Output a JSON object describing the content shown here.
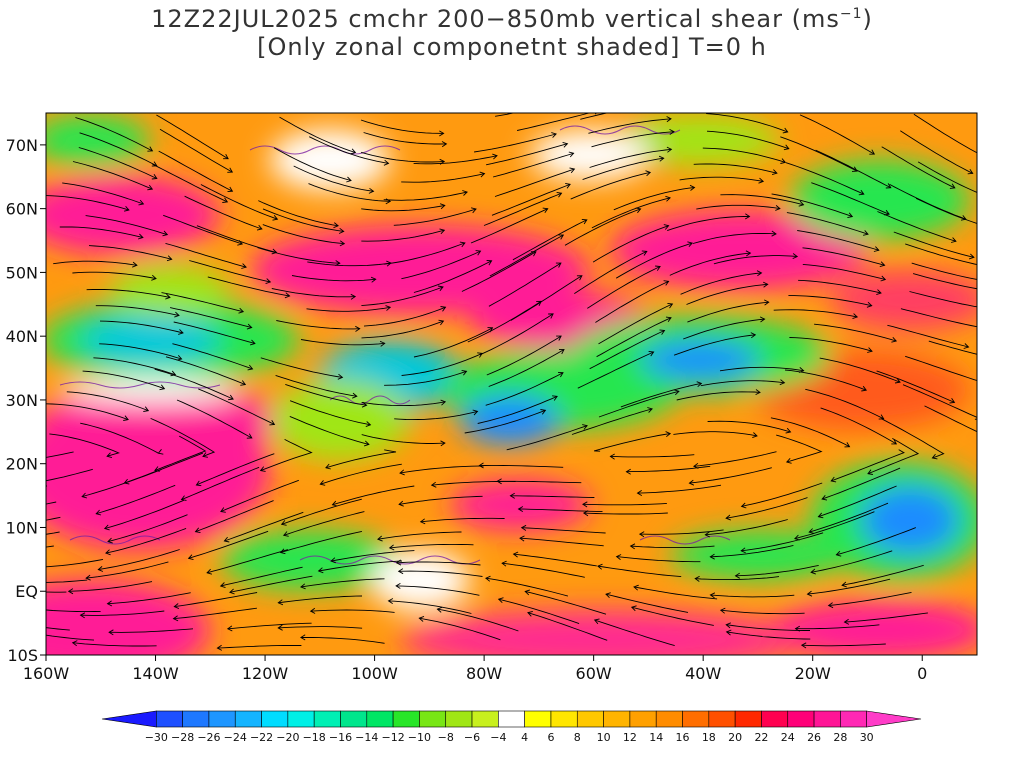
{
  "title": {
    "line1_main": "12Z22JUL2025 cmchr 200−850mb vertical shear (ms",
    "line1_sup": "−1",
    "line1_end": ")",
    "line2": "[Only zonal componetnt shaded] T=0 h"
  },
  "axes": {
    "lat_ticks": [
      {
        "lat": 70,
        "label": "70N"
      },
      {
        "lat": 60,
        "label": "60N"
      },
      {
        "lat": 50,
        "label": "50N"
      },
      {
        "lat": 40,
        "label": "40N"
      },
      {
        "lat": 30,
        "label": "30N"
      },
      {
        "lat": 20,
        "label": "20N"
      },
      {
        "lat": 10,
        "label": "10N"
      },
      {
        "lat": 0,
        "label": "EQ"
      },
      {
        "lat": -10,
        "label": "10S"
      }
    ],
    "lon_ticks": [
      {
        "lon": -160,
        "label": "160W"
      },
      {
        "lon": -140,
        "label": "140W"
      },
      {
        "lon": -120,
        "label": "120W"
      },
      {
        "lon": -100,
        "label": "100W"
      },
      {
        "lon": -80,
        "label": "80W"
      },
      {
        "lon": -60,
        "label": "60W"
      },
      {
        "lon": -40,
        "label": "40W"
      },
      {
        "lon": -20,
        "label": "20W"
      },
      {
        "lon": 0,
        "label": "0"
      }
    ],
    "lon_range": [
      -160,
      10
    ],
    "lat_range": [
      -10,
      75
    ]
  },
  "colorbar": {
    "labels": [
      "−30",
      "−28",
      "−26",
      "−24",
      "−22",
      "−20",
      "−18",
      "−16",
      "−14",
      "−12",
      "−10",
      "−8",
      "−6",
      "−4",
      "4",
      "6",
      "8",
      "10",
      "12",
      "14",
      "16",
      "18",
      "20",
      "22",
      "24",
      "26",
      "28",
      "30"
    ],
    "colors": [
      "#1a1aff",
      "#1e50ff",
      "#1e78ff",
      "#1e96ff",
      "#14b4ff",
      "#00dcff",
      "#00f0e6",
      "#00f0b4",
      "#00e68c",
      "#00e664",
      "#28e628",
      "#78e614",
      "#a0e614",
      "#c8f01e",
      "#ffffff",
      "#ffff00",
      "#ffe600",
      "#ffc800",
      "#ffb400",
      "#ffa000",
      "#ff8c00",
      "#ff6e00",
      "#ff5000",
      "#ff2800",
      "#ff0050",
      "#ff0078",
      "#ff1496",
      "#ff28b4",
      "#ff3cc8"
    ]
  },
  "map_colors": {
    "blue": "#1e8cff",
    "cyan": "#00c8dc",
    "green": "#28e650",
    "lime": "#a0e614",
    "yellow": "#ffdc00",
    "orange": "#ff9600",
    "red": "#ff5014",
    "magenta": "#ff1e96",
    "contour": "#7a1fa2",
    "streamline": "#000000"
  }
}
